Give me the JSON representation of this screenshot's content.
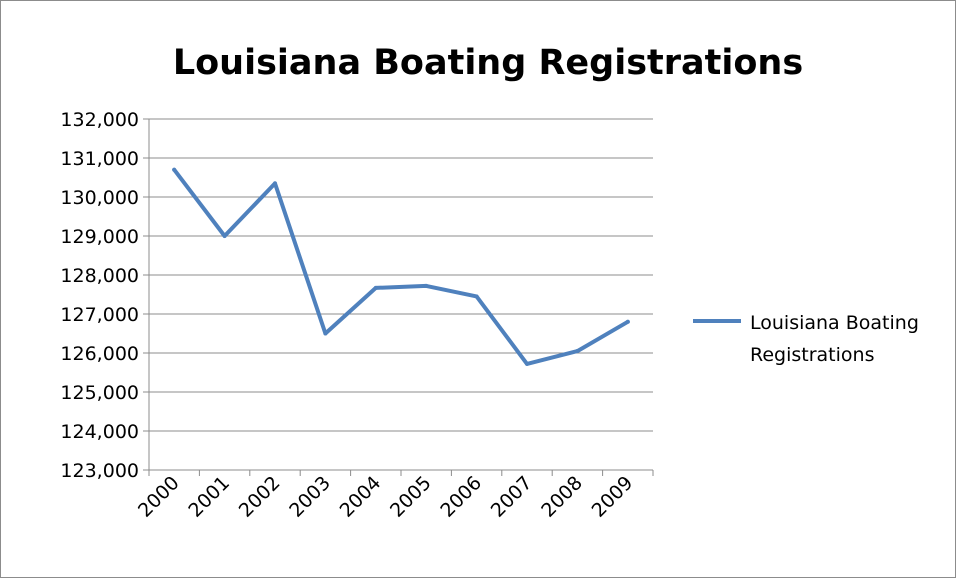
{
  "chart_data": {
    "type": "line",
    "title": "Louisiana Boating Registrations",
    "xlabel": "",
    "ylabel": "",
    "categories": [
      "2000",
      "2001",
      "2002",
      "2003",
      "2004",
      "2005",
      "2006",
      "2007",
      "2008",
      "2009"
    ],
    "series": [
      {
        "name": "Louisiana Boating Registrations",
        "values": [
          130700,
          129000,
          130350,
          126500,
          127670,
          127720,
          127450,
          125720,
          126050,
          126800
        ],
        "color": "#4F81BD"
      }
    ],
    "ylim": [
      123000,
      132000
    ],
    "y_ticks": [
      "123,000",
      "124,000",
      "125,000",
      "126,000",
      "127,000",
      "128,000",
      "129,000",
      "130,000",
      "131,000",
      "132,000"
    ],
    "grid": "horizontal",
    "legend_position": "right",
    "legend_lines": [
      "Louisiana Boating",
      "Registrations"
    ]
  }
}
